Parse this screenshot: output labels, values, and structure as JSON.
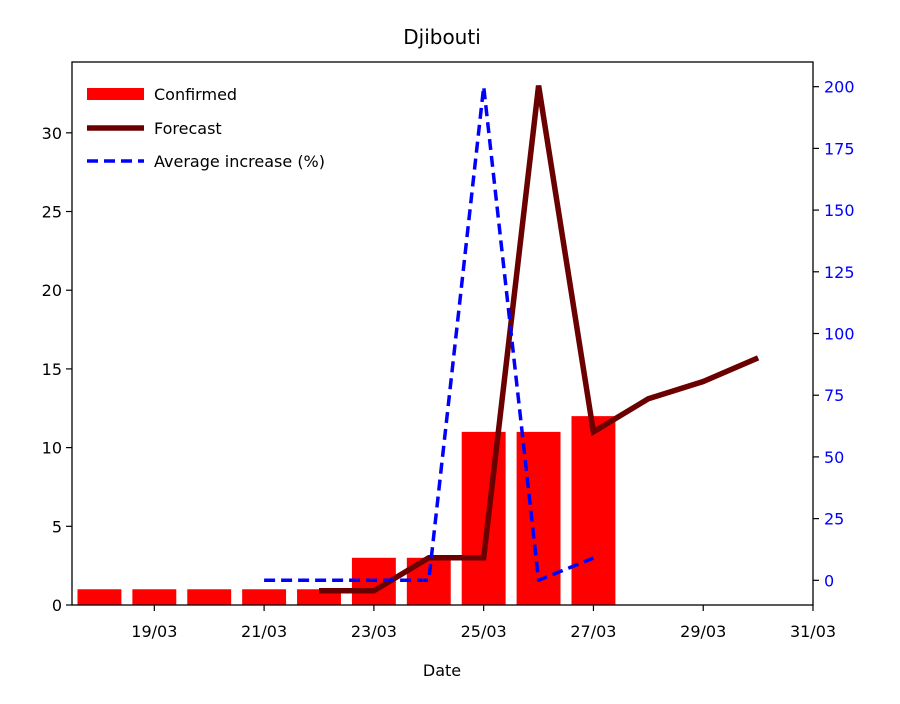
{
  "chart_data": {
    "type": "bar",
    "title": "Djibouti",
    "xlabel": "Date",
    "ylabel": "",
    "y2label": "",
    "x_ticks": [
      "19/03",
      "21/03",
      "23/03",
      "25/03",
      "27/03",
      "29/03",
      "31/03"
    ],
    "ylim": [
      0,
      34.5
    ],
    "y_ticks": [
      0,
      5,
      10,
      15,
      20,
      25,
      30
    ],
    "y2lim": [
      -10,
      210
    ],
    "y2_ticks": [
      0,
      25,
      50,
      75,
      100,
      125,
      150,
      175,
      200
    ],
    "legend_position": "top-left",
    "legend": [
      "Confirmed",
      "Forecast",
      "Average increase (%)"
    ],
    "colors": {
      "confirmed": "#ff0000",
      "forecast": "#6b0000",
      "average_increase": "#0000ff",
      "right_axis": "#0000ff"
    },
    "series": [
      {
        "name": "Confirmed",
        "kind": "bar",
        "axis": "left",
        "x": [
          "18/03",
          "19/03",
          "20/03",
          "21/03",
          "22/03",
          "23/03",
          "24/03",
          "25/03",
          "26/03",
          "27/03"
        ],
        "values": [
          1,
          1,
          1,
          1,
          1,
          3,
          3,
          11,
          11,
          12
        ]
      },
      {
        "name": "Forecast",
        "kind": "line",
        "axis": "left",
        "x": [
          "22/03",
          "23/03",
          "24/03",
          "25/03",
          "26/03",
          "27/03",
          "28/03",
          "29/03",
          "30/03"
        ],
        "values": [
          0.9,
          0.9,
          3,
          3,
          33,
          11,
          13.1,
          14.2,
          15.7
        ]
      },
      {
        "name": "Average increase (%)",
        "kind": "line",
        "axis": "right",
        "x": [
          "21/03",
          "22/03",
          "23/03",
          "24/03",
          "25/03",
          "26/03",
          "27/03"
        ],
        "values": [
          0,
          0,
          0,
          0,
          200,
          0,
          9
        ]
      }
    ]
  }
}
